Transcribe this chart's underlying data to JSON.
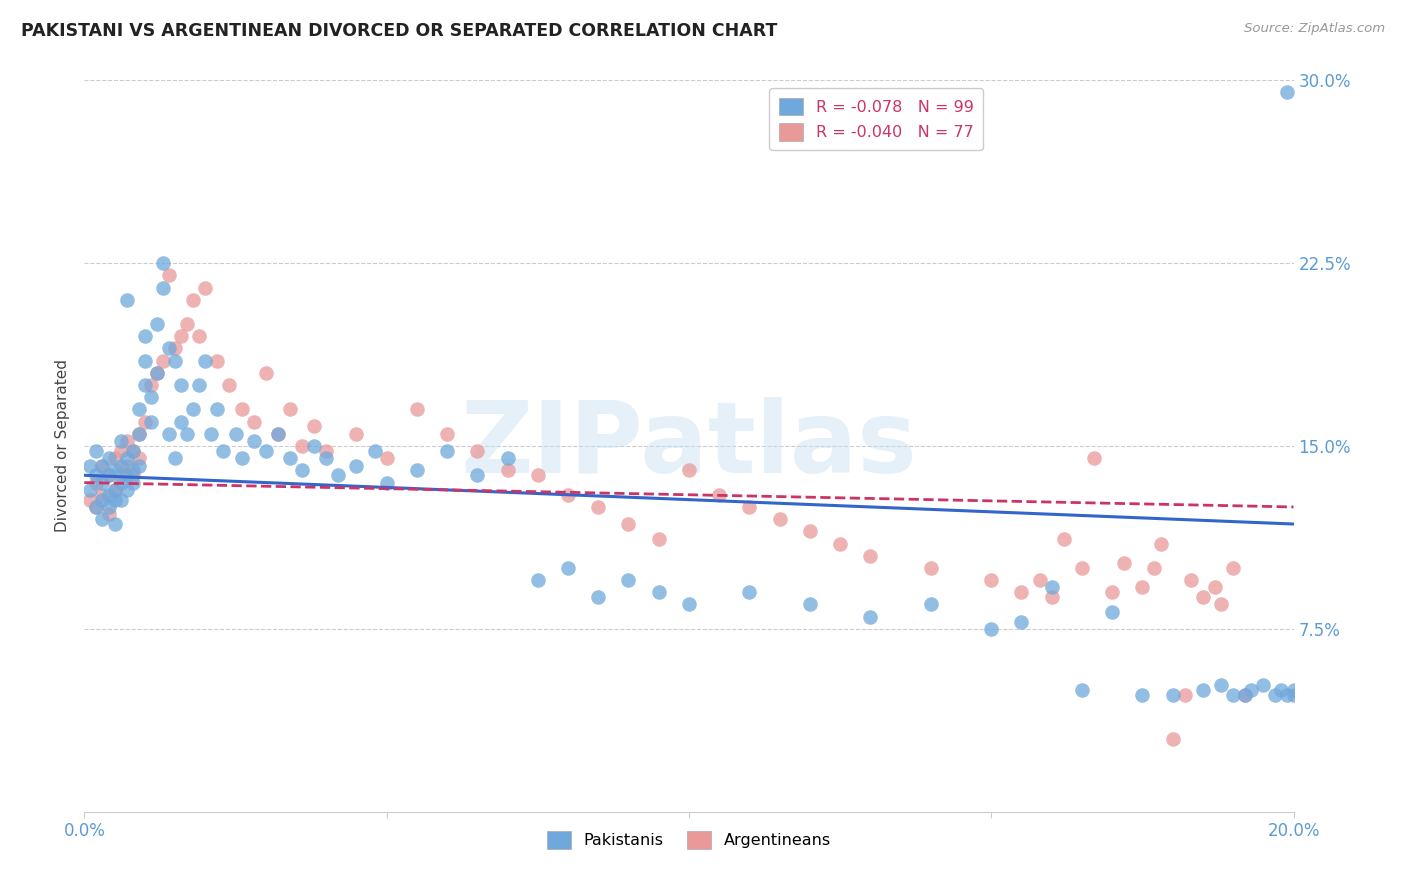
{
  "title": "PAKISTANI VS ARGENTINEAN DIVORCED OR SEPARATED CORRELATION CHART",
  "source": "Source: ZipAtlas.com",
  "ylabel": "Divorced or Separated",
  "watermark": "ZIPatlas",
  "xlim": [
    0.0,
    0.2
  ],
  "ylim": [
    0.0,
    0.3
  ],
  "pakistani_color": "#6fa8dc",
  "argentinean_color": "#ea9999",
  "pakistani_line_color": "#3366cc",
  "argentinean_line_color": "#cc3366",
  "pakistani_R": -0.078,
  "pakistani_N": 99,
  "argentinean_R": -0.04,
  "argentinean_N": 77,
  "pakistani_x": [
    0.001,
    0.001,
    0.002,
    0.002,
    0.002,
    0.003,
    0.003,
    0.003,
    0.003,
    0.004,
    0.004,
    0.004,
    0.004,
    0.005,
    0.005,
    0.005,
    0.005,
    0.006,
    0.006,
    0.006,
    0.006,
    0.007,
    0.007,
    0.007,
    0.007,
    0.008,
    0.008,
    0.008,
    0.009,
    0.009,
    0.009,
    0.01,
    0.01,
    0.01,
    0.011,
    0.011,
    0.012,
    0.012,
    0.013,
    0.013,
    0.014,
    0.014,
    0.015,
    0.015,
    0.016,
    0.016,
    0.017,
    0.018,
    0.019,
    0.02,
    0.021,
    0.022,
    0.023,
    0.025,
    0.026,
    0.028,
    0.03,
    0.032,
    0.034,
    0.036,
    0.038,
    0.04,
    0.042,
    0.045,
    0.048,
    0.05,
    0.055,
    0.06,
    0.065,
    0.07,
    0.075,
    0.08,
    0.085,
    0.09,
    0.095,
    0.1,
    0.11,
    0.12,
    0.13,
    0.14,
    0.15,
    0.155,
    0.16,
    0.165,
    0.17,
    0.175,
    0.18,
    0.185,
    0.188,
    0.19,
    0.192,
    0.193,
    0.195,
    0.197,
    0.198,
    0.199,
    0.199,
    0.2,
    0.2
  ],
  "pakistani_y": [
    0.132,
    0.142,
    0.125,
    0.138,
    0.148,
    0.128,
    0.135,
    0.142,
    0.12,
    0.13,
    0.138,
    0.125,
    0.145,
    0.132,
    0.14,
    0.128,
    0.118,
    0.135,
    0.142,
    0.128,
    0.152,
    0.138,
    0.145,
    0.132,
    0.21,
    0.14,
    0.148,
    0.135,
    0.142,
    0.155,
    0.165,
    0.175,
    0.185,
    0.195,
    0.17,
    0.16,
    0.2,
    0.18,
    0.225,
    0.215,
    0.19,
    0.155,
    0.185,
    0.145,
    0.175,
    0.16,
    0.155,
    0.165,
    0.175,
    0.185,
    0.155,
    0.165,
    0.148,
    0.155,
    0.145,
    0.152,
    0.148,
    0.155,
    0.145,
    0.14,
    0.15,
    0.145,
    0.138,
    0.142,
    0.148,
    0.135,
    0.14,
    0.148,
    0.138,
    0.145,
    0.095,
    0.1,
    0.088,
    0.095,
    0.09,
    0.085,
    0.09,
    0.085,
    0.08,
    0.085,
    0.075,
    0.078,
    0.092,
    0.05,
    0.082,
    0.048,
    0.048,
    0.05,
    0.052,
    0.048,
    0.048,
    0.05,
    0.052,
    0.048,
    0.05,
    0.048,
    0.295,
    0.048,
    0.05
  ],
  "argentinean_x": [
    0.001,
    0.002,
    0.002,
    0.003,
    0.003,
    0.004,
    0.004,
    0.005,
    0.005,
    0.006,
    0.006,
    0.007,
    0.007,
    0.008,
    0.008,
    0.009,
    0.009,
    0.01,
    0.011,
    0.012,
    0.013,
    0.014,
    0.015,
    0.016,
    0.017,
    0.018,
    0.019,
    0.02,
    0.022,
    0.024,
    0.026,
    0.028,
    0.03,
    0.032,
    0.034,
    0.036,
    0.038,
    0.04,
    0.045,
    0.05,
    0.055,
    0.06,
    0.065,
    0.07,
    0.075,
    0.08,
    0.085,
    0.09,
    0.095,
    0.1,
    0.105,
    0.11,
    0.115,
    0.12,
    0.125,
    0.13,
    0.14,
    0.15,
    0.155,
    0.158,
    0.16,
    0.162,
    0.165,
    0.167,
    0.17,
    0.172,
    0.175,
    0.177,
    0.178,
    0.18,
    0.182,
    0.183,
    0.185,
    0.187,
    0.188,
    0.19,
    0.192
  ],
  "argentinean_y": [
    0.128,
    0.135,
    0.125,
    0.142,
    0.13,
    0.138,
    0.122,
    0.145,
    0.132,
    0.148,
    0.138,
    0.152,
    0.142,
    0.148,
    0.138,
    0.155,
    0.145,
    0.16,
    0.175,
    0.18,
    0.185,
    0.22,
    0.19,
    0.195,
    0.2,
    0.21,
    0.195,
    0.215,
    0.185,
    0.175,
    0.165,
    0.16,
    0.18,
    0.155,
    0.165,
    0.15,
    0.158,
    0.148,
    0.155,
    0.145,
    0.165,
    0.155,
    0.148,
    0.14,
    0.138,
    0.13,
    0.125,
    0.118,
    0.112,
    0.14,
    0.13,
    0.125,
    0.12,
    0.115,
    0.11,
    0.105,
    0.1,
    0.095,
    0.09,
    0.095,
    0.088,
    0.112,
    0.1,
    0.145,
    0.09,
    0.102,
    0.092,
    0.1,
    0.11,
    0.03,
    0.048,
    0.095,
    0.088,
    0.092,
    0.085,
    0.1,
    0.048
  ]
}
